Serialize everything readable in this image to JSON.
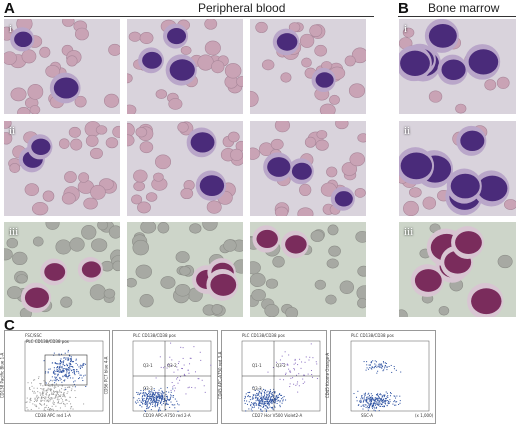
{
  "panels": {
    "A": {
      "letter": "A",
      "title": "Peripheral blood"
    },
    "B": {
      "letter": "B",
      "title": "Bone marrow"
    },
    "C": {
      "letter": "C"
    }
  },
  "rows": [
    {
      "label": "i",
      "stain": "may-grunwald-giemsa"
    },
    {
      "label": "ii",
      "stain": "may-grunwald-giemsa"
    },
    {
      "label": "iii",
      "stain": "cytochemistry"
    }
  ],
  "flow_plots": [
    {
      "title": "FSC/SSC",
      "gate_label": "PLC CD138/CD38 pos",
      "xlabel": "CD38 APC red 1-A",
      "ylabel": "CD138 Pacific Blue 1-A"
    },
    {
      "title": "PLC CD138/CD38 pos",
      "quadrants": [
        "Q3-1",
        "Q3-2",
        "Q3-3"
      ],
      "xlabel": "CD19 APC-A750 red 2-A",
      "ylabel": "CD56 PC7 blue 4-A"
    },
    {
      "title": "PLC CD138/CD38 pos",
      "quadrants": [
        "Q1-1",
        "Q3-2",
        "Q3-3"
      ],
      "xlabel": "CD27 Hor V500 Violet2-A",
      "ylabel": "CD45 APC-A750 red 3-A"
    },
    {
      "title": "PLC CD138/CD38 pos",
      "xlabel": "SSC-A",
      "ylabel": "CD45 Krome Orange-A",
      "x_scale_note": "(x 1,000)"
    }
  ],
  "colors": {
    "blast_stain": "#4a2b7a",
    "rbc": "#c9a3b5",
    "background_mgg": "#d9d3dc",
    "background_cyto": "#cdd5c9",
    "flow_dots": "#2a4fa0",
    "flow_gray": "#9a9a9a"
  }
}
